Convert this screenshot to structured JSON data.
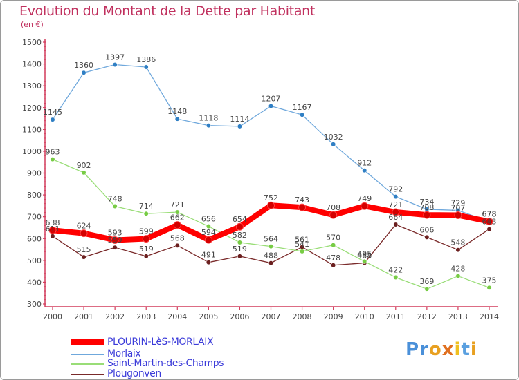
{
  "chart_data": {
    "type": "line",
    "title": "Evolution du Montant de la Dette par Habitant",
    "unit": "(en €)",
    "x": [
      "2000",
      "2001",
      "2002",
      "2003",
      "2004",
      "2005",
      "2006",
      "2007",
      "2008",
      "2009",
      "2010",
      "2011",
      "2012",
      "2013",
      "2014"
    ],
    "ylim": [
      300,
      1500
    ],
    "yticks": [
      300,
      400,
      500,
      600,
      700,
      800,
      900,
      1000,
      1100,
      1200,
      1300,
      1400,
      1500
    ],
    "grid": false,
    "legend_position": "bottom-left",
    "series": [
      {
        "name": "PLOURIN-LèS-MORLAIX",
        "color": "#ff0000",
        "marker": "#d40000",
        "values": [
          638,
          624,
          593,
          599,
          662,
          594,
          654,
          752,
          743,
          708,
          749,
          721,
          708,
          707,
          678
        ]
      },
      {
        "name": "Morlaix",
        "color": "#6fa8dc",
        "marker": "#2f7fc4",
        "values": [
          1145,
          1360,
          1397,
          1386,
          1148,
          1118,
          1114,
          1207,
          1167,
          1032,
          912,
          792,
          734,
          729,
          678
        ]
      },
      {
        "name": "Saint-Martin-des-Champs",
        "color": "#99dd77",
        "marker": "#77cc44",
        "values": [
          963,
          902,
          748,
          714,
          721,
          656,
          582,
          564,
          541,
          570,
          495,
          422,
          369,
          428,
          375
        ]
      },
      {
        "name": "Plougonven",
        "color": "#7a2a2a",
        "marker": "#6b1f1f",
        "values": [
          611,
          515,
          559,
          519,
          568,
          491,
          519,
          488,
          561,
          478,
          488,
          664,
          606,
          548,
          643
        ]
      }
    ]
  },
  "logo": {
    "text": "Proxiti"
  }
}
